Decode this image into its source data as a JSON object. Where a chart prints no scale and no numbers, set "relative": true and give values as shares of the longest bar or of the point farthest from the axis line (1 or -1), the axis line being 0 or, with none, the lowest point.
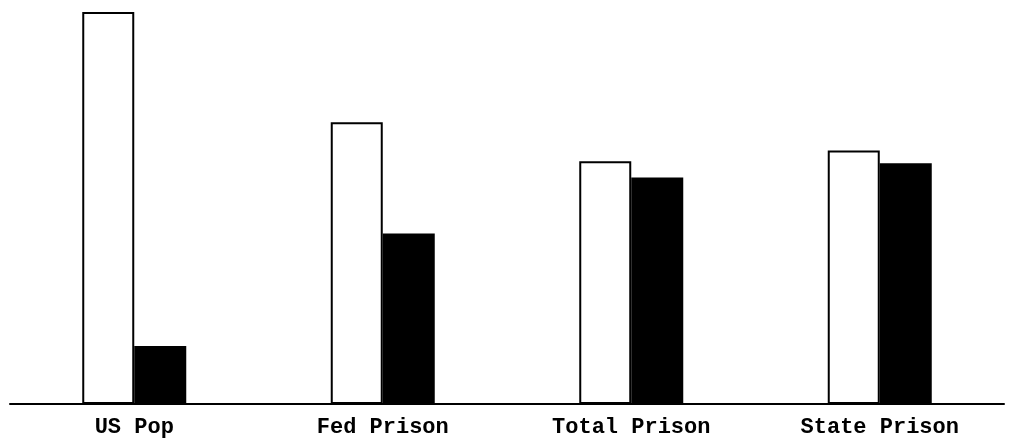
{
  "chart_data": {
    "type": "bar",
    "relative": true,
    "categories": [
      "US Pop",
      "Fed Prison",
      "Total Prison",
      "State Prison"
    ],
    "series": [
      {
        "color": "#ffffff",
        "values": [
          1,
          0.719,
          0.619,
          0.647
        ]
      },
      {
        "color": "#000000",
        "values": [
          0.148,
          0.435,
          0.578,
          0.614
        ]
      }
    ]
  }
}
